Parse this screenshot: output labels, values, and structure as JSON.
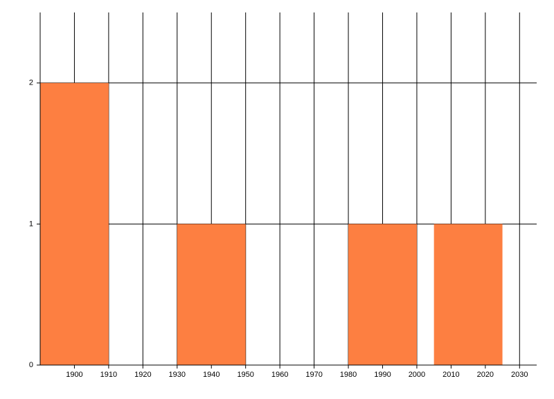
{
  "chart_data": {
    "type": "histogram",
    "bins": [
      1890,
      1910,
      1930,
      1950,
      1980,
      2000,
      2005,
      2025
    ],
    "values": [
      2,
      0,
      1,
      0,
      1,
      0,
      1
    ],
    "color": "#fd7f41",
    "xlim": [
      1890,
      2035
    ],
    "xticks": [
      1900,
      1910,
      1920,
      1930,
      1940,
      1950,
      1960,
      1970,
      1980,
      1990,
      2000,
      2010,
      2020,
      2030
    ],
    "ylim": [
      0,
      2.5
    ],
    "yticks": [
      0,
      1,
      2
    ],
    "grid": true
  }
}
